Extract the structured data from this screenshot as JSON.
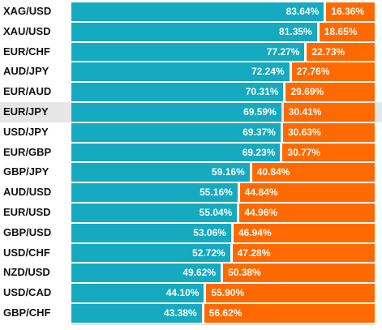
{
  "colors": {
    "long": "#15aabf",
    "short": "#ff6a00",
    "highlight_row": "#e6e6e6"
  },
  "chart_data": {
    "type": "bar",
    "stacked": true,
    "orientation": "horizontal",
    "xlim": [
      0,
      100
    ],
    "highlighted": "EUR/JPY",
    "categories": [
      "XAG/USD",
      "XAU/USD",
      "EUR/CHF",
      "AUD/JPY",
      "EUR/AUD",
      "EUR/JPY",
      "USD/JPY",
      "EUR/GBP",
      "GBP/JPY",
      "AUD/USD",
      "EUR/USD",
      "GBP/USD",
      "USD/CHF",
      "NZD/USD",
      "USD/CAD",
      "GBP/CHF"
    ],
    "series": [
      {
        "values": [
          83.64,
          81.35,
          77.27,
          72.24,
          70.31,
          69.59,
          69.37,
          69.23,
          59.16,
          55.16,
          55.04,
          53.06,
          52.72,
          49.62,
          44.1,
          43.38
        ],
        "labels": [
          "83.64%",
          "81.35%",
          "77.27%",
          "72.24%",
          "70.31%",
          "69.59%",
          "69.37%",
          "69.23%",
          "59.16%",
          "55.16%",
          "55.04%",
          "53.06%",
          "52.72%",
          "49.62%",
          "44.10%",
          "43.38%"
        ]
      },
      {
        "values": [
          16.36,
          18.65,
          22.73,
          27.76,
          29.69,
          30.41,
          30.63,
          30.77,
          40.84,
          44.84,
          44.96,
          46.94,
          47.28,
          50.38,
          55.9,
          56.62
        ],
        "labels": [
          "16.36%",
          "18.65%",
          "22.73%",
          "27.76%",
          "29.69%",
          "30.41%",
          "30.63%",
          "30.77%",
          "40.84%",
          "44.84%",
          "44.96%",
          "46.94%",
          "47.28%",
          "50.38%",
          "55.90%",
          "56.62%"
        ]
      }
    ]
  }
}
